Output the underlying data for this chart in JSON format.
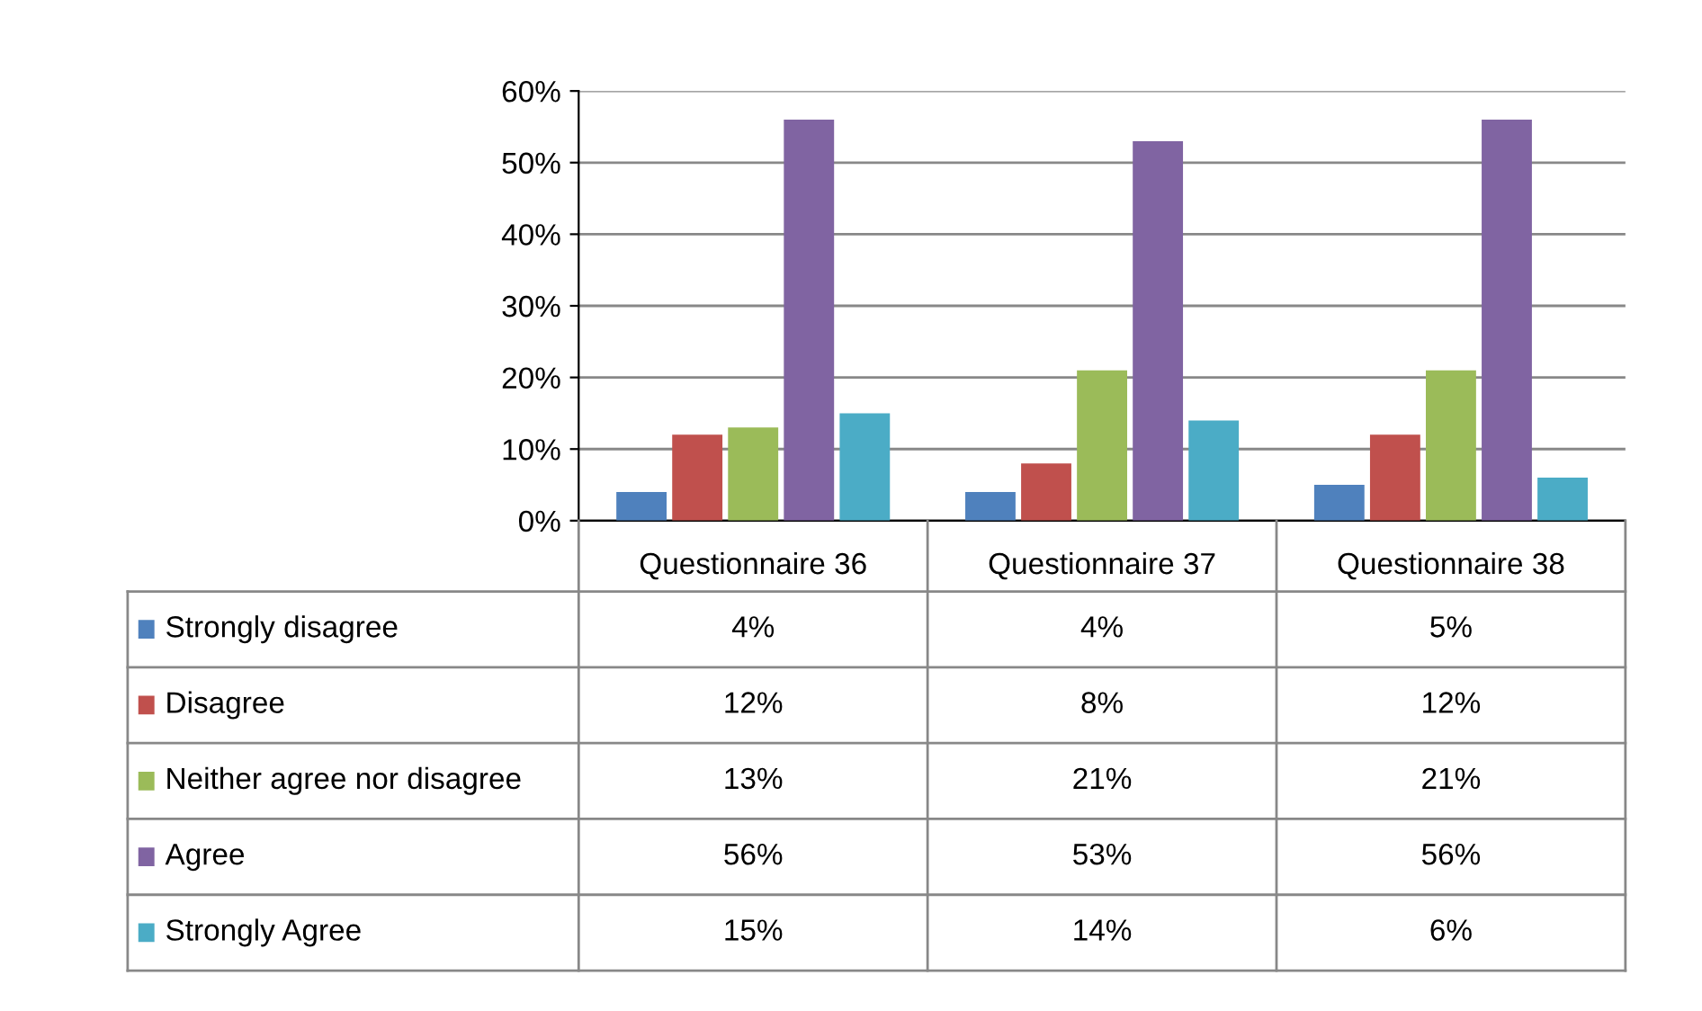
{
  "chart_data": {
    "type": "bar",
    "categories": [
      "Questionnaire 36",
      "Questionnaire 37",
      "Questionnaire 38"
    ],
    "series": [
      {
        "name": "Strongly disagree",
        "color": "#4f81bd",
        "values": [
          4,
          4,
          5
        ],
        "value_labels": [
          "4%",
          "4%",
          "5%"
        ]
      },
      {
        "name": "Disagree",
        "color": "#c0504d",
        "values": [
          12,
          8,
          12
        ],
        "value_labels": [
          "12%",
          "8%",
          "12%"
        ]
      },
      {
        "name": "Neither agree nor disagree",
        "color": "#9bbb59",
        "values": [
          13,
          21,
          21
        ],
        "value_labels": [
          "13%",
          "21%",
          "21%"
        ]
      },
      {
        "name": "Agree",
        "color": "#8064a2",
        "values": [
          56,
          53,
          56
        ],
        "value_labels": [
          "56%",
          "53%",
          "56%"
        ]
      },
      {
        "name": "Strongly Agree",
        "color": "#4bacc6",
        "values": [
          15,
          14,
          6
        ],
        "value_labels": [
          "15%",
          "14%",
          "6%"
        ]
      }
    ],
    "ylim": [
      0,
      60
    ],
    "yticks": [
      {
        "value": 0,
        "label": "0%"
      },
      {
        "value": 10,
        "label": "10%"
      },
      {
        "value": 20,
        "label": "20%"
      },
      {
        "value": 30,
        "label": "30%"
      },
      {
        "value": 40,
        "label": "40%"
      },
      {
        "value": 50,
        "label": "50%"
      },
      {
        "value": 60,
        "label": "60%"
      }
    ],
    "grid": "y",
    "legend": "bottom"
  }
}
